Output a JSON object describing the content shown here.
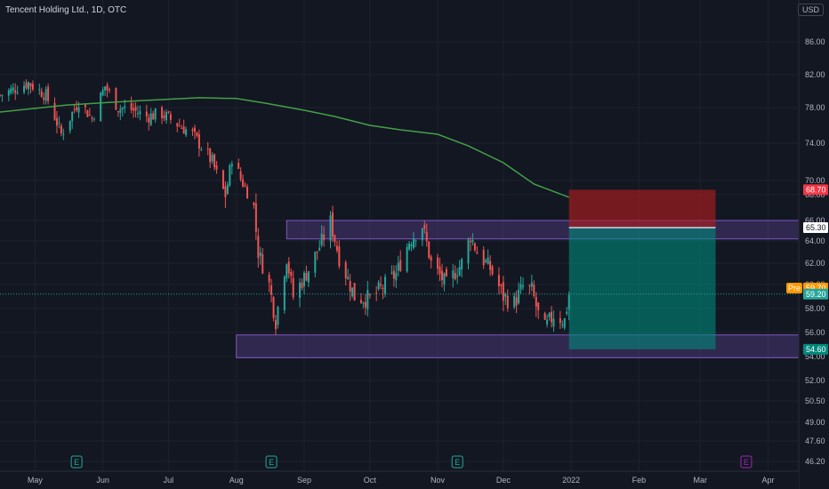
{
  "header": {
    "title": "Tencent Holding Ltd., 1D, OTC",
    "currency": "USD"
  },
  "colors": {
    "background": "#131722",
    "up": "#26a69a",
    "down": "#ef5350",
    "ma": "#43a047",
    "zone": "#7e57c2",
    "stop_zone": "#b71c1c",
    "target_zone": "#00897b"
  },
  "price_axis": {
    "ticks": [
      "86.00",
      "82.00",
      "78.00",
      "74.00",
      "70.00",
      "68.00",
      "66.00",
      "64.00",
      "62.00",
      "60.00",
      "58.00",
      "56.00",
      "54.00",
      "52.00",
      "50.50",
      "49.00",
      "47.60",
      "46.20"
    ],
    "tags": {
      "stop": "68.70",
      "entry": "65.30",
      "pre_badge": "Pre",
      "pre": "59.70",
      "last": "59.20",
      "target": "54.60"
    }
  },
  "time_axis": {
    "labels": [
      "May",
      "Jun",
      "Jul",
      "Aug",
      "Sep",
      "Oct",
      "Nov",
      "Dec",
      "2022",
      "Feb",
      "Mar",
      "Apr"
    ]
  },
  "events": {
    "earnings_icon_label": "E"
  },
  "chart_data": {
    "type": "candlestick",
    "title": "Tencent Holding Ltd., 1D, OTC",
    "currency": "USD",
    "x_range": [
      "2021-04-15",
      "2022-04-15"
    ],
    "y_range": [
      46.2,
      86.0
    ],
    "y_ticks": [
      86.0,
      82.0,
      78.0,
      74.0,
      70.0,
      68.0,
      66.0,
      64.0,
      62.0,
      60.0,
      58.0,
      56.0,
      54.0,
      52.0,
      50.5,
      49.0,
      47.6,
      46.2
    ],
    "x_labels": [
      "May",
      "Jun",
      "Jul",
      "Aug",
      "Sep",
      "Oct",
      "Nov",
      "Dec",
      "2022",
      "Feb",
      "Mar",
      "Apr"
    ],
    "x_label_dates": [
      "2021-05-01",
      "2021-06-01",
      "2021-07-01",
      "2021-08-01",
      "2021-09-01",
      "2021-10-01",
      "2021-11-01",
      "2021-12-01",
      "2022-01-01",
      "2022-02-01",
      "2022-03-01",
      "2022-04-01"
    ],
    "price_anchors": [
      [
        "2021-04-15",
        79.5
      ],
      [
        "2021-04-28",
        81.0
      ],
      [
        "2021-05-06",
        79.5
      ],
      [
        "2021-05-10",
        77.0
      ],
      [
        "2021-05-13",
        75.0
      ],
      [
        "2021-05-21",
        78.8
      ],
      [
        "2021-05-27",
        76.8
      ],
      [
        "2021-06-02",
        80.6
      ],
      [
        "2021-06-08",
        78.0
      ],
      [
        "2021-06-14",
        77.8
      ],
      [
        "2021-06-21",
        77.0
      ],
      [
        "2021-06-28",
        77.3
      ],
      [
        "2021-07-06",
        76.0
      ],
      [
        "2021-07-12",
        75.0
      ],
      [
        "2021-07-21",
        72.0
      ],
      [
        "2021-07-27",
        68.0
      ],
      [
        "2021-07-30",
        72.5
      ],
      [
        "2021-08-05",
        69.0
      ],
      [
        "2021-08-09",
        67.0
      ],
      [
        "2021-08-11",
        63.0
      ],
      [
        "2021-08-16",
        60.0
      ],
      [
        "2021-08-19",
        57.0
      ],
      [
        "2021-08-24",
        62.5
      ],
      [
        "2021-08-27",
        59.0
      ],
      [
        "2021-09-02",
        61.0
      ],
      [
        "2021-09-08",
        63.5
      ],
      [
        "2021-09-13",
        65.8
      ],
      [
        "2021-09-17",
        62.5
      ],
      [
        "2021-09-24",
        59.0
      ],
      [
        "2021-10-01",
        58.8
      ],
      [
        "2021-10-07",
        59.8
      ],
      [
        "2021-10-13",
        61.0
      ],
      [
        "2021-10-19",
        64.0
      ],
      [
        "2021-10-25",
        65.5
      ],
      [
        "2021-10-29",
        62.0
      ],
      [
        "2021-11-05",
        60.0
      ],
      [
        "2021-11-12",
        62.0
      ],
      [
        "2021-11-16",
        64.5
      ],
      [
        "2021-11-19",
        63.0
      ],
      [
        "2021-11-25",
        61.5
      ],
      [
        "2021-12-01",
        59.0
      ],
      [
        "2021-12-06",
        58.5
      ],
      [
        "2021-12-10",
        59.8
      ],
      [
        "2021-12-14",
        59.5
      ],
      [
        "2021-12-17",
        57.5
      ],
      [
        "2021-12-20",
        56.3
      ],
      [
        "2021-12-24",
        57.5
      ],
      [
        "2021-12-29",
        57.0
      ],
      [
        "2021-12-31",
        59.2
      ]
    ],
    "moving_average": {
      "name": "",
      "points": [
        [
          "2021-04-15",
          77.5
        ],
        [
          "2021-05-15",
          78.3
        ],
        [
          "2021-06-15",
          78.8
        ],
        [
          "2021-07-15",
          79.2
        ],
        [
          "2021-08-01",
          79.1
        ],
        [
          "2021-08-15",
          78.5
        ],
        [
          "2021-09-01",
          77.7
        ],
        [
          "2021-09-15",
          77.0
        ],
        [
          "2021-10-01",
          76.0
        ],
        [
          "2021-10-15",
          75.5
        ],
        [
          "2021-11-01",
          75.0
        ],
        [
          "2021-11-15",
          73.7
        ],
        [
          "2021-12-01",
          71.9
        ],
        [
          "2021-12-15",
          69.5
        ],
        [
          "2021-12-31",
          67.8
        ]
      ]
    },
    "zones": [
      {
        "from": "2021-08-24",
        "to": "2022-04-15",
        "top": 66.0,
        "bottom": 64.2
      },
      {
        "from": "2021-08-01",
        "to": "2022-04-15",
        "top": 55.8,
        "bottom": 53.9
      }
    ],
    "short_position": {
      "from": "2021-12-31",
      "to": "2022-03-08",
      "stop": 68.7,
      "entry": 65.3,
      "target": 54.6
    },
    "price_tags": {
      "stop": 68.7,
      "entry": 65.3,
      "pre": 59.7,
      "last": 59.2,
      "target": 54.6
    },
    "events": [
      "2021-05-20",
      "2021-08-17",
      "2021-11-10",
      "2022-03-22"
    ],
    "grid": true,
    "legend_position": "top-left"
  }
}
